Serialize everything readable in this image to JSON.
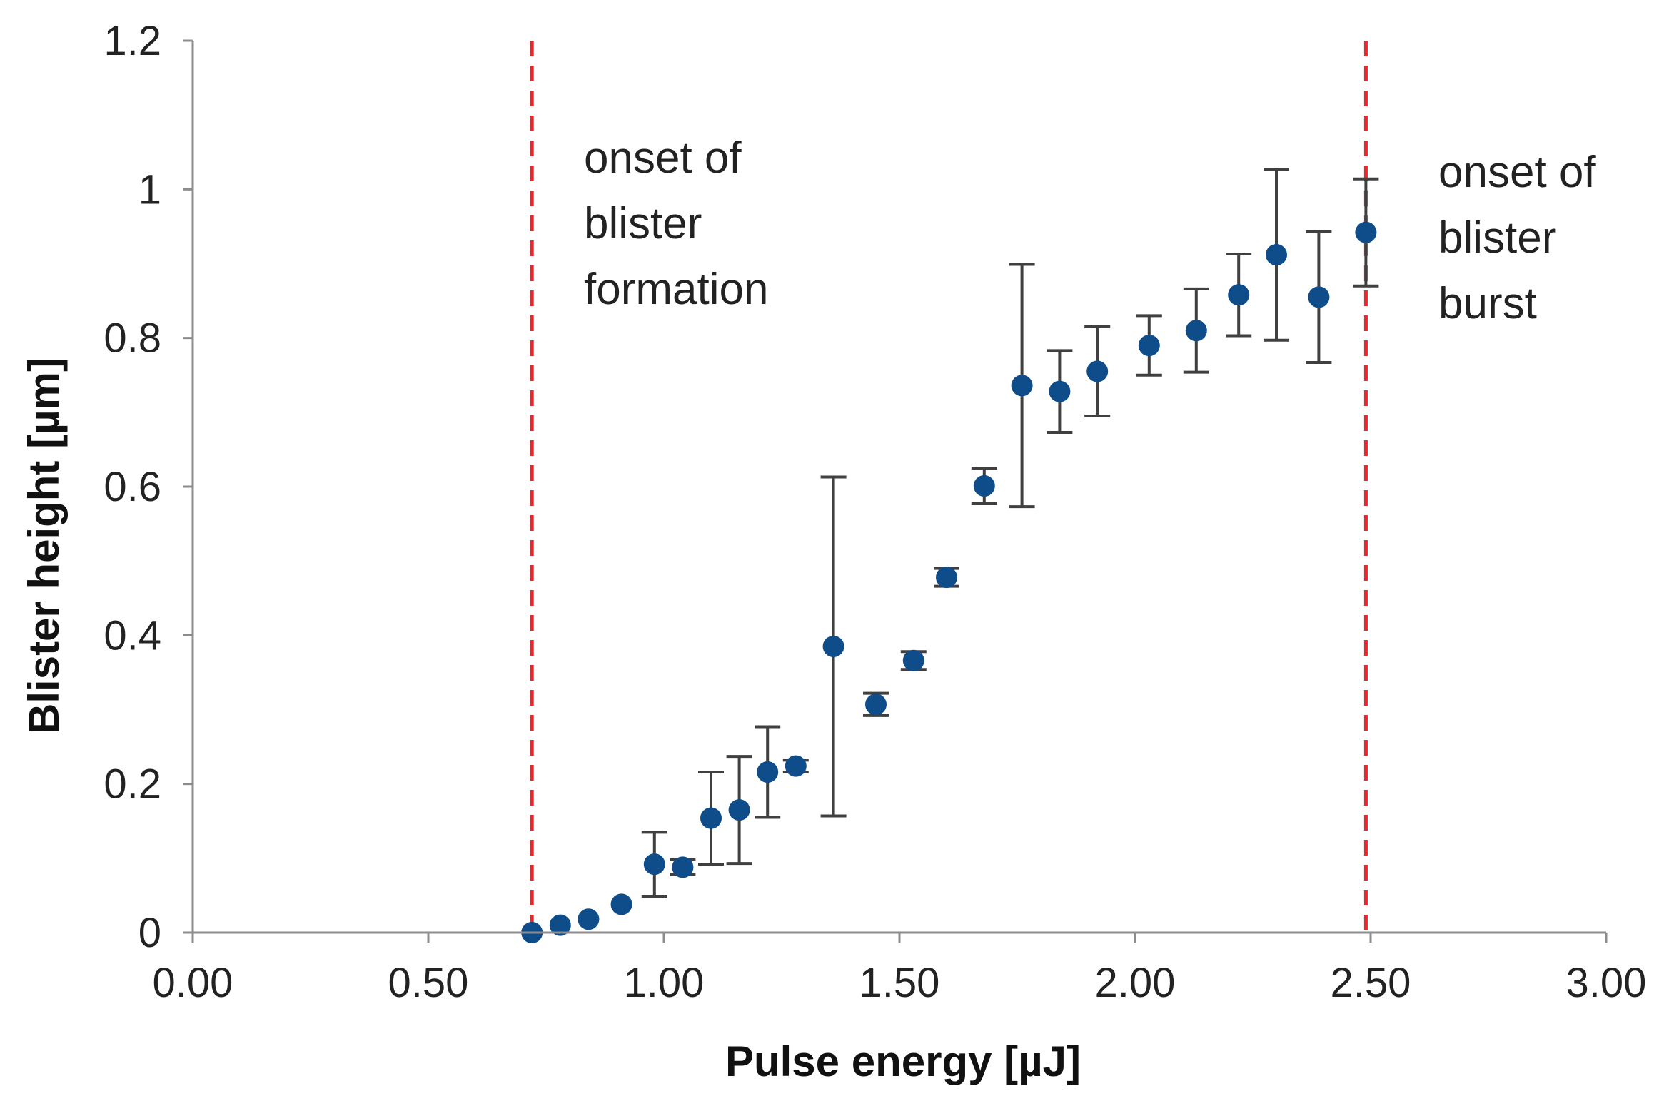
{
  "chart_data": {
    "type": "scatter",
    "title": "",
    "xlabel": "Pulse energy [µJ]",
    "ylabel": "Blister height [µm]",
    "xlim": [
      0,
      3
    ],
    "ylim": [
      0,
      1.2
    ],
    "x_ticks": [
      "0.00",
      "0.50",
      "1.00",
      "1.50",
      "2.00",
      "2.50",
      "3.00"
    ],
    "y_ticks": [
      "0",
      "0.2",
      "0.4",
      "0.6",
      "0.8",
      "1",
      "1.2"
    ],
    "grid": false,
    "legend": "none",
    "marker_color": "#0f4c8a",
    "errorbar_color": "#404040",
    "points": [
      {
        "x": 0.72,
        "y": 0.0,
        "err": 0.0
      },
      {
        "x": 0.78,
        "y": 0.01,
        "err": 0.0
      },
      {
        "x": 0.84,
        "y": 0.018,
        "err": 0.0
      },
      {
        "x": 0.91,
        "y": 0.038,
        "err": 0.0
      },
      {
        "x": 0.98,
        "y": 0.092,
        "err": 0.043
      },
      {
        "x": 1.04,
        "y": 0.088,
        "err": 0.01
      },
      {
        "x": 1.1,
        "y": 0.154,
        "err": 0.062
      },
      {
        "x": 1.16,
        "y": 0.165,
        "err": 0.072
      },
      {
        "x": 1.22,
        "y": 0.216,
        "err": 0.061
      },
      {
        "x": 1.28,
        "y": 0.224,
        "err": 0.008
      },
      {
        "x": 1.36,
        "y": 0.385,
        "err": 0.228
      },
      {
        "x": 1.45,
        "y": 0.307,
        "err": 0.015
      },
      {
        "x": 1.53,
        "y": 0.366,
        "err": 0.012
      },
      {
        "x": 1.6,
        "y": 0.478,
        "err": 0.012
      },
      {
        "x": 1.68,
        "y": 0.601,
        "err": 0.024
      },
      {
        "x": 1.76,
        "y": 0.736,
        "err": 0.163
      },
      {
        "x": 1.84,
        "y": 0.728,
        "err": 0.055
      },
      {
        "x": 1.92,
        "y": 0.755,
        "err": 0.06
      },
      {
        "x": 2.03,
        "y": 0.79,
        "err": 0.04
      },
      {
        "x": 2.13,
        "y": 0.81,
        "err": 0.056
      },
      {
        "x": 2.22,
        "y": 0.858,
        "err": 0.055
      },
      {
        "x": 2.3,
        "y": 0.912,
        "err": 0.115
      },
      {
        "x": 2.39,
        "y": 0.855,
        "err": 0.088
      },
      {
        "x": 2.49,
        "y": 0.942,
        "err": 0.072
      }
    ],
    "reference_lines": [
      {
        "x": 0.72,
        "color": "#e8262b",
        "style": "dashed"
      },
      {
        "x": 2.49,
        "color": "#e8262b",
        "style": "dashed"
      }
    ],
    "annotations": [
      {
        "lines": [
          "onset of",
          "blister",
          "formation"
        ]
      },
      {
        "lines": [
          "onset of",
          "blister",
          "burst"
        ]
      }
    ]
  }
}
